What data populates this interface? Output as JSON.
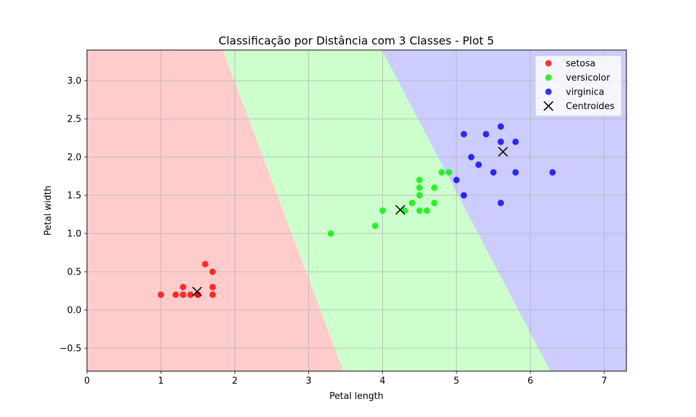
{
  "chart_data": {
    "type": "scatter",
    "title": "Classificação por Distância com 3 Classes - Plot 5",
    "xlabel": "Petal length",
    "ylabel": "Petal width",
    "xlim": [
      0,
      7.3
    ],
    "ylim": [
      -0.8,
      3.4
    ],
    "xticks": [
      0,
      1,
      2,
      3,
      4,
      5,
      6,
      7
    ],
    "yticks": [
      -0.5,
      0.0,
      0.5,
      1.0,
      1.5,
      2.0,
      2.5,
      3.0
    ],
    "ytick_labels": [
      "−0.5",
      "0.0",
      "0.5",
      "1.0",
      "1.5",
      "2.0",
      "2.5",
      "3.0"
    ],
    "grid": true,
    "legend_position": "top-right",
    "series": [
      {
        "name": "setosa",
        "color": "#ff0000",
        "points": [
          [
            1.0,
            0.2
          ],
          [
            1.2,
            0.2
          ],
          [
            1.3,
            0.2
          ],
          [
            1.3,
            0.3
          ],
          [
            1.4,
            0.2
          ],
          [
            1.5,
            0.2
          ],
          [
            1.5,
            0.2
          ],
          [
            1.6,
            0.6
          ],
          [
            1.7,
            0.5
          ],
          [
            1.7,
            0.3
          ],
          [
            1.7,
            0.2
          ]
        ]
      },
      {
        "name": "versicolor",
        "color": "#00ee00",
        "points": [
          [
            3.3,
            1.0
          ],
          [
            3.9,
            1.1
          ],
          [
            4.0,
            1.3
          ],
          [
            4.3,
            1.3
          ],
          [
            4.4,
            1.4
          ],
          [
            4.5,
            1.3
          ],
          [
            4.5,
            1.5
          ],
          [
            4.5,
            1.6
          ],
          [
            4.5,
            1.7
          ],
          [
            4.6,
            1.3
          ],
          [
            4.7,
            1.4
          ],
          [
            4.7,
            1.6
          ],
          [
            4.8,
            1.8
          ],
          [
            4.9,
            1.8
          ]
        ]
      },
      {
        "name": "virginica",
        "color": "#0000ee",
        "points": [
          [
            5.0,
            1.7
          ],
          [
            5.1,
            2.3
          ],
          [
            5.1,
            1.5
          ],
          [
            5.2,
            2.0
          ],
          [
            5.3,
            1.9
          ],
          [
            5.4,
            2.3
          ],
          [
            5.5,
            1.8
          ],
          [
            5.6,
            2.4
          ],
          [
            5.6,
            2.2
          ],
          [
            5.6,
            1.4
          ],
          [
            5.8,
            2.2
          ],
          [
            5.8,
            1.8
          ],
          [
            6.3,
            1.8
          ]
        ]
      }
    ],
    "centroids": {
      "name": "Centroides",
      "color": "#000000",
      "points": [
        [
          1.49,
          0.24
        ],
        [
          4.24,
          1.31
        ],
        [
          5.63,
          2.07
        ]
      ]
    },
    "regions": {
      "colors": [
        "#ffcccc",
        "#ccffcc",
        "#ccccff"
      ],
      "boundary_setosa_versicolor": [
        [
          1.84,
          3.4
        ],
        [
          3.47,
          -0.8
        ]
      ],
      "boundary_versicolor_virginica": [
        [
          3.99,
          3.4
        ],
        [
          6.27,
          -0.8
        ]
      ]
    }
  }
}
